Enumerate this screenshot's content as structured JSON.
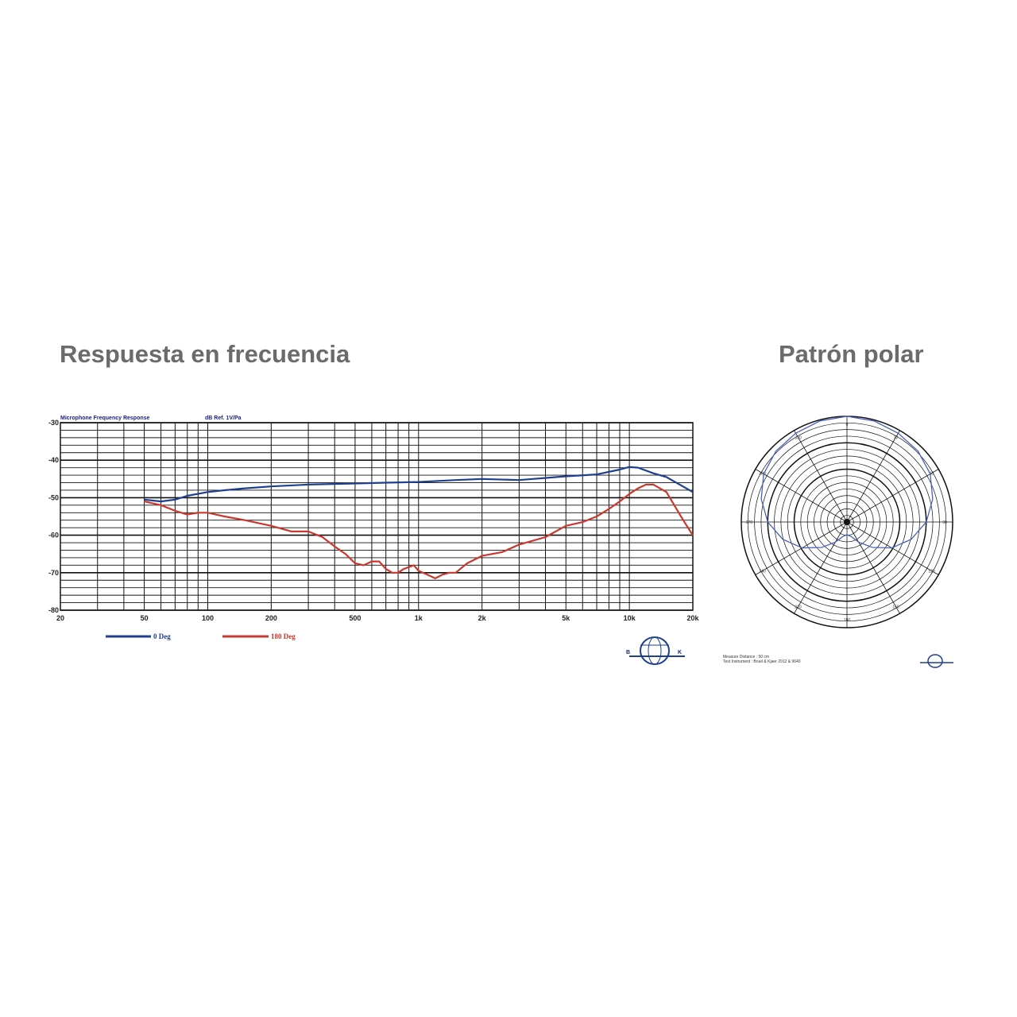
{
  "headings": {
    "frequency_response": "Respuesta en frecuencia",
    "polar_pattern": "Patrón polar"
  },
  "chart_header": {
    "left": "Microphone Frequency Response",
    "right": "dB Ref. 1V/Pa"
  },
  "polar_footer": {
    "line1": "Measure Distance : 50 cm",
    "line2": "Test Instrument : Bruel & Kjaer 2012 & 9640"
  },
  "logo_letters": [
    "B",
    "K"
  ],
  "colors": {
    "blue": "#1f3f8f",
    "red": "#c8382e",
    "grid": "#111111"
  },
  "chart_data": [
    {
      "type": "line",
      "x_scale": "log",
      "xlim": [
        20,
        20000
      ],
      "ylim": [
        -80,
        -30
      ],
      "x_ticks": [
        20,
        50,
        100,
        200,
        500,
        1000,
        2000,
        5000,
        10000,
        20000
      ],
      "x_tick_labels": [
        "20",
        "50",
        "100",
        "200",
        "500",
        "1k",
        "2k",
        "5k",
        "10k",
        "20k"
      ],
      "y_ticks": [
        -30,
        -40,
        -50,
        -60,
        -70,
        -80
      ],
      "y_tick_labels": [
        "-30",
        "-40",
        "-50",
        "-60",
        "-70",
        "-80"
      ],
      "grid": true,
      "legend_position": "bottom-left",
      "series": [
        {
          "name": "0 Deg",
          "color": "#1f3f8f",
          "x": [
            50,
            60,
            70,
            80,
            100,
            120,
            150,
            200,
            300,
            500,
            700,
            1000,
            1500,
            2000,
            3000,
            5000,
            7000,
            9000,
            10000,
            11000,
            13000,
            15000,
            20000
          ],
          "y": [
            -50.5,
            -51.0,
            -50.5,
            -49.5,
            -48.5,
            -48.0,
            -47.5,
            -47.0,
            -46.5,
            -46.2,
            -46.0,
            -45.8,
            -45.3,
            -45.0,
            -45.3,
            -44.3,
            -43.8,
            -42.5,
            -41.8,
            -42.0,
            -43.5,
            -44.5,
            -48.5
          ]
        },
        {
          "name": "180 Deg",
          "color": "#c8382e",
          "x": [
            50,
            60,
            70,
            80,
            90,
            100,
            120,
            150,
            200,
            250,
            300,
            350,
            400,
            450,
            500,
            550,
            600,
            650,
            700,
            750,
            800,
            850,
            900,
            950,
            1000,
            1100,
            1200,
            1300,
            1400,
            1500,
            1700,
            2000,
            2500,
            3000,
            4000,
            5000,
            6000,
            7000,
            8000,
            9000,
            10000,
            11000,
            12000,
            13000,
            15000,
            18000,
            20000
          ],
          "y": [
            -51.0,
            -52.0,
            -53.5,
            -54.5,
            -54.0,
            -54.0,
            -55.0,
            -56.0,
            -57.5,
            -59.0,
            -59.0,
            -60.5,
            -63.0,
            -65.0,
            -67.5,
            -68.0,
            -67.0,
            -67.0,
            -69.0,
            -70.0,
            -70.0,
            -69.0,
            -68.5,
            -68.0,
            -69.5,
            -70.5,
            -71.5,
            -70.5,
            -70.0,
            -70.0,
            -67.5,
            -65.5,
            -64.5,
            -62.5,
            -60.5,
            -57.5,
            -56.5,
            -55.0,
            -53.0,
            -51.0,
            -49.0,
            -47.5,
            -46.5,
            -46.5,
            -48.5,
            -56.0,
            -60.0
          ]
        }
      ]
    },
    {
      "type": "polar",
      "angle_labels": [
        "0",
        "30",
        "60",
        "90",
        "120",
        "150",
        "180",
        "210",
        "240",
        "270",
        "300",
        "330"
      ],
      "series": [
        {
          "color": "#4a62b8",
          "angle_deg": [
            0,
            15,
            30,
            45,
            60,
            75,
            90,
            105,
            120,
            135,
            150,
            165,
            180,
            195,
            210,
            225,
            240,
            255,
            270,
            285,
            300,
            315,
            330,
            345
          ],
          "radius": [
            1.0,
            0.99,
            0.97,
            0.95,
            0.91,
            0.84,
            0.75,
            0.63,
            0.49,
            0.34,
            0.22,
            0.14,
            0.12,
            0.14,
            0.22,
            0.34,
            0.49,
            0.63,
            0.75,
            0.84,
            0.91,
            0.95,
            0.97,
            0.99
          ]
        }
      ]
    }
  ]
}
